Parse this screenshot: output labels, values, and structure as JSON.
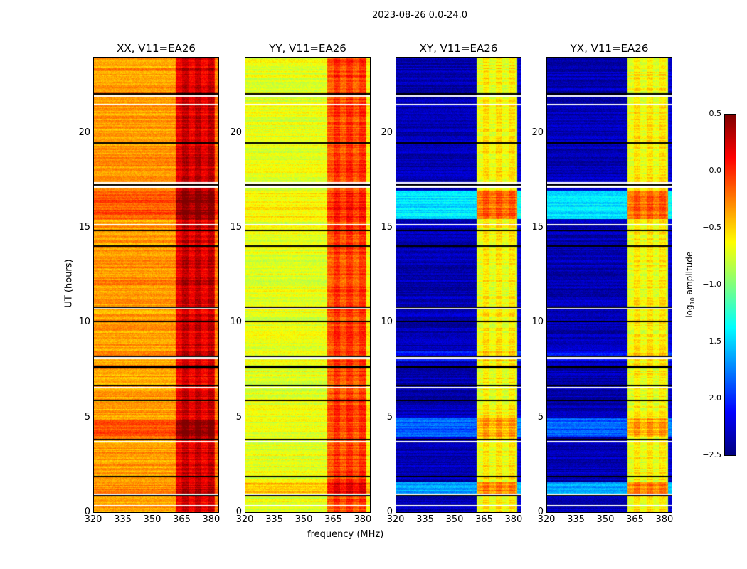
{
  "chart_data": {
    "type": "heatmap",
    "title": "2023-08-26 0.0-24.0",
    "xlabel": "frequency (MHz)",
    "ylabel": "UT (hours)",
    "xlim": [
      320,
      384
    ],
    "ylim": [
      0,
      24
    ],
    "xticks": [
      "320",
      "335",
      "350",
      "365",
      "380"
    ],
    "xtick_values": [
      320,
      335,
      350,
      365,
      380
    ],
    "yticks": [
      "0",
      "5",
      "10",
      "15",
      "20"
    ],
    "ytick_values": [
      0,
      5,
      10,
      15,
      20
    ],
    "colorbar": {
      "label": "log10 amplitude",
      "label_main": "log",
      "label_sub": "10",
      "label_rest": " amplitude",
      "range": [
        -2.5,
        0.5
      ],
      "ticks": [
        "0.5",
        "0.0",
        "−0.5",
        "−1.0",
        "−1.5",
        "−2.0",
        "−2.5"
      ],
      "tick_values": [
        0.5,
        0.0,
        -0.5,
        -1.0,
        -1.5,
        -2.0,
        -2.5
      ],
      "colormap": "jet"
    },
    "flagged_hours": [
      0.35,
      0.9,
      0.95,
      1.9,
      3.75,
      3.85,
      5.9,
      6.6,
      6.7,
      7.65,
      7.7,
      8.15,
      8.25,
      10.1,
      10.8,
      10.85,
      14.05,
      14.9,
      15.2,
      17.2,
      17.3,
      17.4,
      19.5,
      21.55,
      22.0,
      22.1
    ],
    "panels": [
      {
        "title": "XX, V11=EA26",
        "level_low": -0.35,
        "level_high": 0.15,
        "high_band": [
          362,
          382
        ],
        "hot_rows": [
          [
            4.0,
            4.9,
            0.5
          ],
          [
            15.5,
            17.0,
            0.45
          ],
          [
            1.0,
            1.6,
            0.1
          ],
          [
            12.0,
            14.0,
            0.1
          ],
          [
            17.5,
            19.3,
            0.05
          ],
          [
            22.0,
            23.5,
            0.05
          ]
        ]
      },
      {
        "title": "YY, V11=EA26",
        "level_low": -0.7,
        "level_high": -0.15,
        "high_band": [
          362,
          382
        ],
        "hot_rows": [
          [
            1.0,
            1.6,
            0.45
          ],
          [
            15.5,
            17.0,
            0.2
          ],
          [
            12.0,
            14.0,
            -0.05
          ]
        ]
      },
      {
        "title": "XY, V11=EA26",
        "level_low": -2.35,
        "level_high": -0.7,
        "high_band": [
          361,
          382
        ],
        "hot_rows": [
          [
            15.5,
            17.0,
            0.9
          ],
          [
            1.0,
            1.6,
            0.7
          ],
          [
            4.0,
            5.0,
            0.5
          ],
          [
            8.0,
            8.5,
            0.3
          ]
        ]
      },
      {
        "title": "YX, V11=EA26",
        "level_low": -2.35,
        "level_high": -0.7,
        "high_band": [
          361,
          382
        ],
        "hot_rows": [
          [
            15.5,
            17.0,
            0.9
          ],
          [
            1.0,
            1.6,
            0.7
          ],
          [
            4.0,
            5.0,
            0.5
          ],
          [
            8.0,
            8.5,
            0.3
          ]
        ]
      }
    ]
  }
}
